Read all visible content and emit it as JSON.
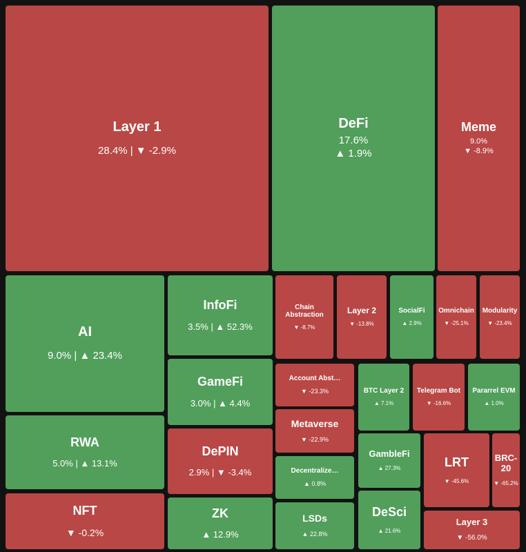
{
  "colors": {
    "background": "#121212",
    "negative": "#b94745",
    "positive": "#519f5b"
  },
  "chart_data": {
    "type": "treemap",
    "title": "",
    "size_metric": "share of market cap (%)",
    "change_metric": "change (%)",
    "items": [
      {
        "name": "Layer 1",
        "share": 28.4,
        "change": -2.9,
        "share_text": "28.4%",
        "change_text": "▼ -2.9%"
      },
      {
        "name": "DeFi",
        "share": 17.6,
        "change": 1.9,
        "share_text": "17.6%",
        "change_text": "▲ 1.9%"
      },
      {
        "name": "Meme",
        "share": 9.0,
        "change": -8.9,
        "share_text": "9.0%",
        "change_text": "▼ -8.9%"
      },
      {
        "name": "AI",
        "share": 9.0,
        "change": 23.4,
        "share_text": "9.0%",
        "change_text": "▲ 23.4%"
      },
      {
        "name": "InfoFi",
        "share": 3.5,
        "change": 52.3,
        "share_text": "3.5%",
        "change_text": "▲ 52.3%"
      },
      {
        "name": "GameFi",
        "share": 3.0,
        "change": 4.4,
        "share_text": "3.0%",
        "change_text": "▲ 4.4%"
      },
      {
        "name": "RWA",
        "share": 5.0,
        "change": 13.1,
        "share_text": "5.0%",
        "change_text": "▲ 13.1%"
      },
      {
        "name": "DePIN",
        "share": 2.9,
        "change": -3.4,
        "share_text": "2.9%",
        "change_text": "▼ -3.4%"
      },
      {
        "name": "NFT",
        "change": -0.2,
        "change_text": "▼ -0.2%"
      },
      {
        "name": "ZK",
        "change": 12.9,
        "change_text": "▲ 12.9%"
      },
      {
        "name": "Chain\nAbstraction",
        "change": -8.7,
        "change_text": "▼ -8.7%"
      },
      {
        "name": "Layer 2",
        "change": -13.8,
        "change_text": "▼ -13.8%"
      },
      {
        "name": "SocialFi",
        "change": 2.9,
        "change_text": "▲ 2.9%"
      },
      {
        "name": "Omnichain",
        "change": -25.1,
        "change_text": "▼ -25.1%"
      },
      {
        "name": "Modularity",
        "change": -23.4,
        "change_text": "▼ -23.4%"
      },
      {
        "name": "Account Abst…",
        "change": -23.3,
        "change_text": "▼ -23.3%"
      },
      {
        "name": "BTC Layer 2",
        "change": 7.1,
        "change_text": "▲ 7.1%"
      },
      {
        "name": "Telegram Bot",
        "change": -16.6,
        "change_text": "▼ -16.6%"
      },
      {
        "name": "Pararrel EVM",
        "change": 1.0,
        "change_text": "▲ 1.0%"
      },
      {
        "name": "Metaverse",
        "change": -22.9,
        "change_text": "▼ -22.9%"
      },
      {
        "name": "GambleFi",
        "change": 27.3,
        "change_text": "▲ 27.3%"
      },
      {
        "name": "LRT",
        "change": -45.6,
        "change_text": "▼ -45.6%"
      },
      {
        "name": "BRC-20",
        "change": -65.2,
        "change_text": "▼ -65.2%"
      },
      {
        "name": "Decentralize…",
        "change": 0.8,
        "change_text": "▲ 0.8%"
      },
      {
        "name": "LSDs",
        "change": 22.8,
        "change_text": "▲ 22.8%"
      },
      {
        "name": "DeSci",
        "change": 21.6,
        "change_text": "▲ 21.6%"
      },
      {
        "name": "Layer 3",
        "change": -56.0,
        "change_text": "▼ -56.0%"
      }
    ]
  }
}
